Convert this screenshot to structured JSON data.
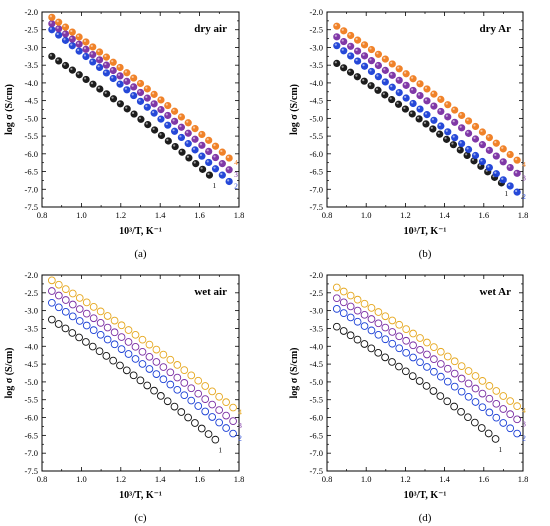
{
  "chart_data": [
    {
      "type": "scatter",
      "panel_label": "(a)",
      "title": "dry air",
      "xlabel": "10³/T, K⁻¹",
      "ylabel": "log σ (S/cm)",
      "xlim": [
        0.8,
        1.8
      ],
      "ylim": [
        -7.5,
        -2.0
      ],
      "xticks": [
        "0.8",
        "1.0",
        "1.2",
        "1.4",
        "1.6",
        "1.8"
      ],
      "yticks": [
        "-2.0",
        "-2.5",
        "-3.0",
        "-3.5",
        "-4.0",
        "-4.5",
        "-5.0",
        "-5.5",
        "-6.0",
        "-6.5",
        "-7.0",
        "-7.5"
      ],
      "marker": "filled",
      "grid": false,
      "series": [
        {
          "name": "1",
          "color": "#111111",
          "x_start": 0.85,
          "x_end": 1.65,
          "y_start": -3.25,
          "y_end": -6.6
        },
        {
          "name": "2",
          "color": "#1a3fd6",
          "x_start": 0.85,
          "x_end": 1.75,
          "y_start": -2.5,
          "y_end": -6.78
        },
        {
          "name": "3",
          "color": "#7a2ea3",
          "x_start": 0.85,
          "x_end": 1.75,
          "y_start": -2.33,
          "y_end": -6.45
        },
        {
          "name": "4",
          "color": "#f07c1e",
          "x_start": 0.85,
          "x_end": 1.75,
          "y_start": -2.15,
          "y_end": -6.12
        }
      ]
    },
    {
      "type": "scatter",
      "panel_label": "(b)",
      "title": "dry Ar",
      "xlabel": "10³/T, K⁻¹",
      "ylabel": "log σ (S/cm)",
      "xlim": [
        0.8,
        1.8
      ],
      "ylim": [
        -7.5,
        -2.0
      ],
      "xticks": [
        "0.8",
        "1.0",
        "1.2",
        "1.4",
        "1.6",
        "1.8"
      ],
      "yticks": [
        "-2.0",
        "-2.5",
        "-3.0",
        "-3.5",
        "-4.0",
        "-4.5",
        "-5.0",
        "-5.5",
        "-6.0",
        "-6.5",
        "-7.0",
        "-7.5"
      ],
      "marker": "filled",
      "grid": false,
      "series": [
        {
          "name": "1",
          "color": "#111111",
          "x_start": 0.85,
          "x_end": 1.69,
          "y_start": -3.45,
          "y_end": -6.82
        },
        {
          "name": "2",
          "color": "#1a3fd6",
          "x_start": 0.85,
          "x_end": 1.77,
          "y_start": -2.95,
          "y_end": -7.08
        },
        {
          "name": "3",
          "color": "#7a2ea3",
          "x_start": 0.85,
          "x_end": 1.77,
          "y_start": -2.7,
          "y_end": -6.55
        },
        {
          "name": "4",
          "color": "#f07c1e",
          "x_start": 0.85,
          "x_end": 1.77,
          "y_start": -2.4,
          "y_end": -6.18
        }
      ]
    },
    {
      "type": "scatter",
      "panel_label": "(c)",
      "title": "wet air",
      "xlabel": "10³/T, K⁻¹",
      "ylabel": "log σ (S/cm)",
      "xlim": [
        0.8,
        1.8
      ],
      "ylim": [
        -7.5,
        -2.0
      ],
      "xticks": [
        "0.8",
        "1.0",
        "1.2",
        "1.4",
        "1.6",
        "1.8"
      ],
      "yticks": [
        "-2.0",
        "-2.5",
        "-3.0",
        "-3.5",
        "-4.0",
        "-4.5",
        "-5.0",
        "-5.5",
        "-6.0",
        "-6.5",
        "-7.0",
        "-7.5"
      ],
      "marker": "open",
      "grid": false,
      "series": [
        {
          "name": "1",
          "color": "#111111",
          "x_start": 0.85,
          "x_end": 1.68,
          "y_start": -3.25,
          "y_end": -6.62
        },
        {
          "name": "2",
          "color": "#1a3fd6",
          "x_start": 0.85,
          "x_end": 1.77,
          "y_start": -2.78,
          "y_end": -6.45
        },
        {
          "name": "3",
          "color": "#7a2ea3",
          "x_start": 0.85,
          "x_end": 1.77,
          "y_start": -2.45,
          "y_end": -6.1
        },
        {
          "name": "4",
          "color": "#e6a820",
          "x_start": 0.85,
          "x_end": 1.77,
          "y_start": -2.15,
          "y_end": -5.72
        }
      ]
    },
    {
      "type": "scatter",
      "panel_label": "(d)",
      "title": "wet Ar",
      "xlabel": "10³/T, K⁻¹",
      "ylabel": "log σ (S/cm)",
      "xlim": [
        0.8,
        1.8
      ],
      "ylim": [
        -7.5,
        -2.0
      ],
      "xticks": [
        "0.8",
        "1.0",
        "1.2",
        "1.4",
        "1.6",
        "1.8"
      ],
      "yticks": [
        "-2.0",
        "-2.5",
        "-3.0",
        "-3.5",
        "-4.0",
        "-4.5",
        "-5.0",
        "-5.5",
        "-6.0",
        "-6.5",
        "-7.0",
        "-7.5"
      ],
      "marker": "open",
      "grid": false,
      "series": [
        {
          "name": "1",
          "color": "#111111",
          "x_start": 0.85,
          "x_end": 1.66,
          "y_start": -3.45,
          "y_end": -6.6
        },
        {
          "name": "2",
          "color": "#1a3fd6",
          "x_start": 0.85,
          "x_end": 1.77,
          "y_start": -2.95,
          "y_end": -6.45
        },
        {
          "name": "3",
          "color": "#7a2ea3",
          "x_start": 0.85,
          "x_end": 1.77,
          "y_start": -2.65,
          "y_end": -6.05
        },
        {
          "name": "4",
          "color": "#e6a820",
          "x_start": 0.85,
          "x_end": 1.77,
          "y_start": -2.35,
          "y_end": -5.68
        }
      ]
    }
  ]
}
